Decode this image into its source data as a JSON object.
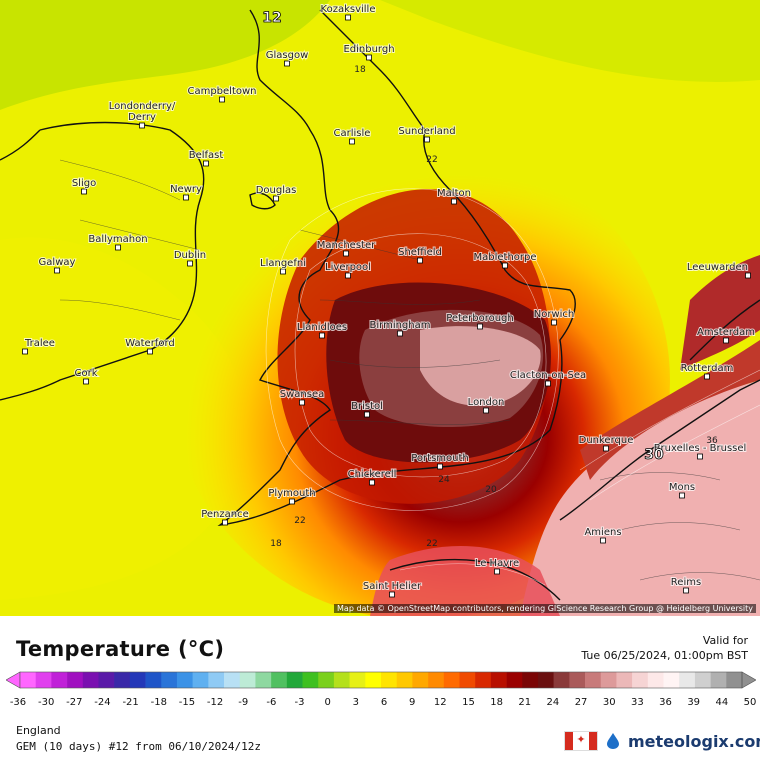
{
  "map": {
    "cities": [
      {
        "name": "Kozaksville"
      },
      {
        "name": "Edinburgh"
      },
      {
        "name": "Glasgow"
      },
      {
        "name": "Campbeltown"
      },
      {
        "name": "Londonderry/\nDerry"
      },
      {
        "name": "Carlisle"
      },
      {
        "name": "Sunderland"
      },
      {
        "name": "Belfast"
      },
      {
        "name": "Sligo"
      },
      {
        "name": "Newry"
      },
      {
        "name": "Douglas"
      },
      {
        "name": "Malton"
      },
      {
        "name": "Ballymahon"
      },
      {
        "name": "Dublin"
      },
      {
        "name": "Manchester"
      },
      {
        "name": "Sheffield"
      },
      {
        "name": "Galway"
      },
      {
        "name": "Llangefni"
      },
      {
        "name": "Liverpool"
      },
      {
        "name": "Mablethorpe"
      },
      {
        "name": "Leeuwarden"
      },
      {
        "name": "Llanidloes"
      },
      {
        "name": "Birmingham"
      },
      {
        "name": "Peterborough"
      },
      {
        "name": "Norwich"
      },
      {
        "name": "Amsterdam"
      },
      {
        "name": "Tralee"
      },
      {
        "name": "Waterford"
      },
      {
        "name": "Rotterdam"
      },
      {
        "name": "Clacton-on-Sea"
      },
      {
        "name": "Cork"
      },
      {
        "name": "Swansea"
      },
      {
        "name": "Bristol"
      },
      {
        "name": "London"
      },
      {
        "name": "Dunkerque"
      },
      {
        "name": "Bruxelles - Brussel"
      },
      {
        "name": "Portsmouth"
      },
      {
        "name": "Chickerell"
      },
      {
        "name": "Plymouth"
      },
      {
        "name": "Mons"
      },
      {
        "name": "Penzance"
      },
      {
        "name": "Amiens"
      },
      {
        "name": "Le Havre"
      },
      {
        "name": "Saint Helier"
      },
      {
        "name": "Reims"
      }
    ],
    "contour_labels": [
      "12",
      "18",
      "22",
      "24",
      "20",
      "22",
      "18",
      "22",
      "30",
      "36"
    ],
    "attribution": "Map data © OpenStreetMap contributors, rendering GIScience Research Group @ Heidelberg University"
  },
  "legend": {
    "title": "Temperature (°C)",
    "valid_label": "Valid for",
    "valid_time": "Tue 06/25/2024, 01:00pm BST",
    "ticks": [
      "-36",
      "-30",
      "-27",
      "-24",
      "-21",
      "-18",
      "-15",
      "-12",
      "-9",
      "-6",
      "-3",
      "0",
      "3",
      "6",
      "9",
      "12",
      "15",
      "18",
      "21",
      "24",
      "27",
      "30",
      "33",
      "36",
      "39",
      "44",
      "50"
    ],
    "colors": [
      "#ff66ff",
      "#e040ee",
      "#c020d8",
      "#a010c0",
      "#7a10b0",
      "#5a1aa8",
      "#3a28a8",
      "#2438b8",
      "#1f55c8",
      "#2a74d8",
      "#3b92e6",
      "#5fb0f0",
      "#8fcaf4",
      "#b8e0f4",
      "#bdebd6",
      "#8ed8a0",
      "#50c060",
      "#22a83a",
      "#3ec020",
      "#7ad01c",
      "#b4e01c",
      "#e6f016",
      "#ffff00",
      "#ffe400",
      "#ffc800",
      "#ffa800",
      "#ff8a00",
      "#ff6a00",
      "#f04a00",
      "#d82800",
      "#b80f00",
      "#9a0000",
      "#7a0505",
      "#6a1010",
      "#8a3a3a",
      "#aa5a5a",
      "#c87a7a",
      "#dd9a9a",
      "#ecb8b8",
      "#f6d4d4",
      "#fde8e8",
      "#fff4f4",
      "#e8e8e8",
      "#cfcfcf",
      "#b0b0b0",
      "#909090"
    ]
  },
  "footer": {
    "region": "England",
    "model": "GEM (10 days) #12 from 06/10/2024/12z",
    "brand": "meteologix.com"
  }
}
